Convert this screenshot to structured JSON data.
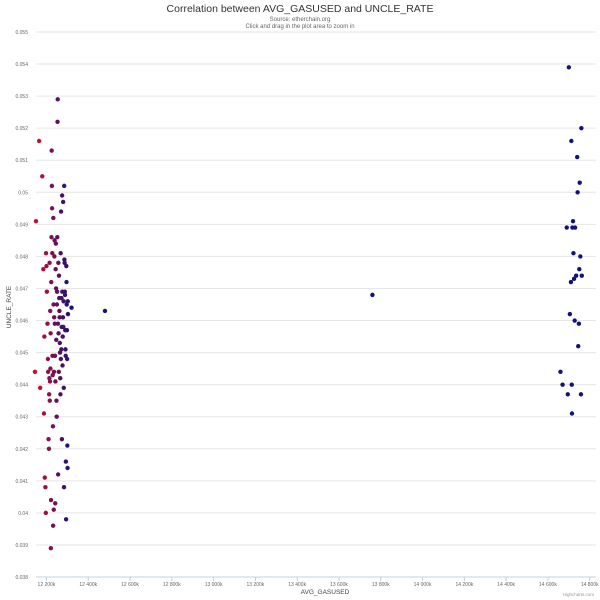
{
  "header": {
    "title": "Correlation between AVG_GASUSED and UNCLE_RATE",
    "source": "Source: etherchain.org",
    "hint": "Click and drag in the plot area to zoom in",
    "credits": "Highcharts.com"
  },
  "chart_data": {
    "type": "scatter",
    "title": "Correlation between AVG_GASUSED and UNCLE_RATE",
    "subtitle": "Source: etherchain.org",
    "xlabel": "AVG_GASUSED",
    "ylabel": "UNCLE_RATE",
    "xlim": [
      12150000,
      14830000
    ],
    "ylim": [
      0.038,
      0.055
    ],
    "x_ticks": [
      12200000,
      12400000,
      12600000,
      12800000,
      13000000,
      13200000,
      13400000,
      13600000,
      13800000,
      14000000,
      14200000,
      14400000,
      14600000,
      14800000
    ],
    "x_tick_labels": [
      "12 200k",
      "12 400k",
      "12 600k",
      "12 800k",
      "13 000k",
      "13 200k",
      "13 400k",
      "13 600k",
      "13 800k",
      "14 000k",
      "14 200k",
      "14 400k",
      "14 600k",
      "14 800k"
    ],
    "y_ticks": [
      0.038,
      0.039,
      0.04,
      0.041,
      0.042,
      0.043,
      0.044,
      0.045,
      0.046,
      0.047,
      0.048,
      0.049,
      0.05,
      0.051,
      0.052,
      0.053,
      0.054,
      0.055
    ],
    "y_tick_labels": [
      "0.038",
      "0.039",
      "0.04",
      "0.041",
      "0.042",
      "0.043",
      "0.044",
      "0.045",
      "0.046",
      "0.047",
      "0.048",
      "0.049",
      "0.05",
      "0.051",
      "0.052",
      "0.053",
      "0.054",
      "0.055"
    ],
    "grid": "horizontal",
    "legend": "none",
    "color_start": "#c8102e",
    "color_end": "#12127a",
    "points": [
      [
        12145000,
        0.0444
      ],
      [
        12150000,
        0.0491
      ],
      [
        12165000,
        0.0516
      ],
      [
        12170000,
        0.0439
      ],
      [
        12180000,
        0.0505
      ],
      [
        12185000,
        0.0476
      ],
      [
        12188000,
        0.0431
      ],
      [
        12190000,
        0.0455
      ],
      [
        12192000,
        0.0411
      ],
      [
        12195000,
        0.0408
      ],
      [
        12197000,
        0.04
      ],
      [
        12198000,
        0.0481
      ],
      [
        12200000,
        0.0477
      ],
      [
        12202000,
        0.0469
      ],
      [
        12205000,
        0.0459
      ],
      [
        12207000,
        0.0448
      ],
      [
        12208000,
        0.0444
      ],
      [
        12210000,
        0.0423
      ],
      [
        12212000,
        0.042
      ],
      [
        12213000,
        0.0437
      ],
      [
        12214000,
        0.0442
      ],
      [
        12215000,
        0.0478
      ],
      [
        12216000,
        0.0435
      ],
      [
        12217000,
        0.0441
      ],
      [
        12218000,
        0.0463
      ],
      [
        12219000,
        0.0445
      ],
      [
        12220000,
        0.0456
      ],
      [
        12221000,
        0.0389
      ],
      [
        12222000,
        0.0404
      ],
      [
        12223000,
        0.0472
      ],
      [
        12224000,
        0.0486
      ],
      [
        12225000,
        0.0513
      ],
      [
        12226000,
        0.0502
      ],
      [
        12227000,
        0.0495
      ],
      [
        12228000,
        0.0481
      ],
      [
        12229000,
        0.0449
      ],
      [
        12230000,
        0.0443
      ],
      [
        12231000,
        0.0427
      ],
      [
        12232000,
        0.0396
      ],
      [
        12233000,
        0.0492
      ],
      [
        12234000,
        0.0465
      ],
      [
        12235000,
        0.0401
      ],
      [
        12236000,
        0.0444
      ],
      [
        12237000,
        0.0461
      ],
      [
        12238000,
        0.048
      ],
      [
        12239000,
        0.0485
      ],
      [
        12240000,
        0.0459
      ],
      [
        12241000,
        0.0449
      ],
      [
        12242000,
        0.0403
      ],
      [
        12243000,
        0.0441
      ],
      [
        12244000,
        0.0476
      ],
      [
        12245000,
        0.0484
      ],
      [
        12246000,
        0.047
      ],
      [
        12247000,
        0.0454
      ],
      [
        12248000,
        0.0435
      ],
      [
        12249000,
        0.043
      ],
      [
        12250000,
        0.0465
      ],
      [
        12251000,
        0.0469
      ],
      [
        12252000,
        0.0486
      ],
      [
        12253000,
        0.0522
      ],
      [
        12254000,
        0.0529
      ],
      [
        12255000,
        0.0459
      ],
      [
        12256000,
        0.0412
      ],
      [
        12257000,
        0.0478
      ],
      [
        12258000,
        0.0456
      ],
      [
        12259000,
        0.0444
      ],
      [
        12260000,
        0.0474
      ],
      [
        12261000,
        0.0467
      ],
      [
        12262000,
        0.0463
      ],
      [
        12263000,
        0.0461
      ],
      [
        12264000,
        0.0453
      ],
      [
        12265000,
        0.045
      ],
      [
        12266000,
        0.0442
      ],
      [
        12267000,
        0.0437
      ],
      [
        12268000,
        0.0481
      ],
      [
        12269000,
        0.0448
      ],
      [
        12270000,
        0.0494
      ],
      [
        12271000,
        0.0451
      ],
      [
        12272000,
        0.0467
      ],
      [
        12273000,
        0.0458
      ],
      [
        12274000,
        0.0423
      ],
      [
        12275000,
        0.0499
      ],
      [
        12276000,
        0.0469
      ],
      [
        12277000,
        0.0446
      ],
      [
        12278000,
        0.0455
      ],
      [
        12279000,
        0.0461
      ],
      [
        12280000,
        0.0497
      ],
      [
        12281000,
        0.0458
      ],
      [
        12282000,
        0.0466
      ],
      [
        12283000,
        0.0439
      ],
      [
        12284000,
        0.0408
      ],
      [
        12285000,
        0.0502
      ],
      [
        12286000,
        0.0479
      ],
      [
        12287000,
        0.0478
      ],
      [
        12288000,
        0.0469
      ],
      [
        12289000,
        0.0468
      ],
      [
        12290000,
        0.0457
      ],
      [
        12291000,
        0.0451
      ],
      [
        12292000,
        0.0449
      ],
      [
        12293000,
        0.0416
      ],
      [
        12294000,
        0.0398
      ],
      [
        12295000,
        0.0477
      ],
      [
        12296000,
        0.0472
      ],
      [
        12297000,
        0.0465
      ],
      [
        12298000,
        0.0457
      ],
      [
        12299000,
        0.0448
      ],
      [
        12300000,
        0.0421
      ],
      [
        12301000,
        0.0414
      ],
      [
        12302000,
        0.0466
      ],
      [
        12303000,
        0.0462
      ],
      [
        12320000,
        0.0464
      ],
      [
        12480000,
        0.0463
      ],
      [
        13760000,
        0.0468
      ],
      [
        14660000,
        0.0444
      ],
      [
        14670000,
        0.044
      ],
      [
        14690000,
        0.0489
      ],
      [
        14695000,
        0.0437
      ],
      [
        14700000,
        0.0539
      ],
      [
        14705000,
        0.0462
      ],
      [
        14710000,
        0.0472
      ],
      [
        14712000,
        0.0516
      ],
      [
        14714000,
        0.044
      ],
      [
        14715000,
        0.0431
      ],
      [
        14717000,
        0.0489
      ],
      [
        14720000,
        0.0491
      ],
      [
        14722000,
        0.0481
      ],
      [
        14725000,
        0.0473
      ],
      [
        14728000,
        0.046
      ],
      [
        14730000,
        0.0489
      ],
      [
        14735000,
        0.0474
      ],
      [
        14740000,
        0.0511
      ],
      [
        14742000,
        0.05
      ],
      [
        14745000,
        0.0452
      ],
      [
        14748000,
        0.0459
      ],
      [
        14750000,
        0.0476
      ],
      [
        14752000,
        0.0503
      ],
      [
        14755000,
        0.048
      ],
      [
        14758000,
        0.0437
      ],
      [
        14760000,
        0.052
      ],
      [
        14762000,
        0.0474
      ]
    ]
  }
}
